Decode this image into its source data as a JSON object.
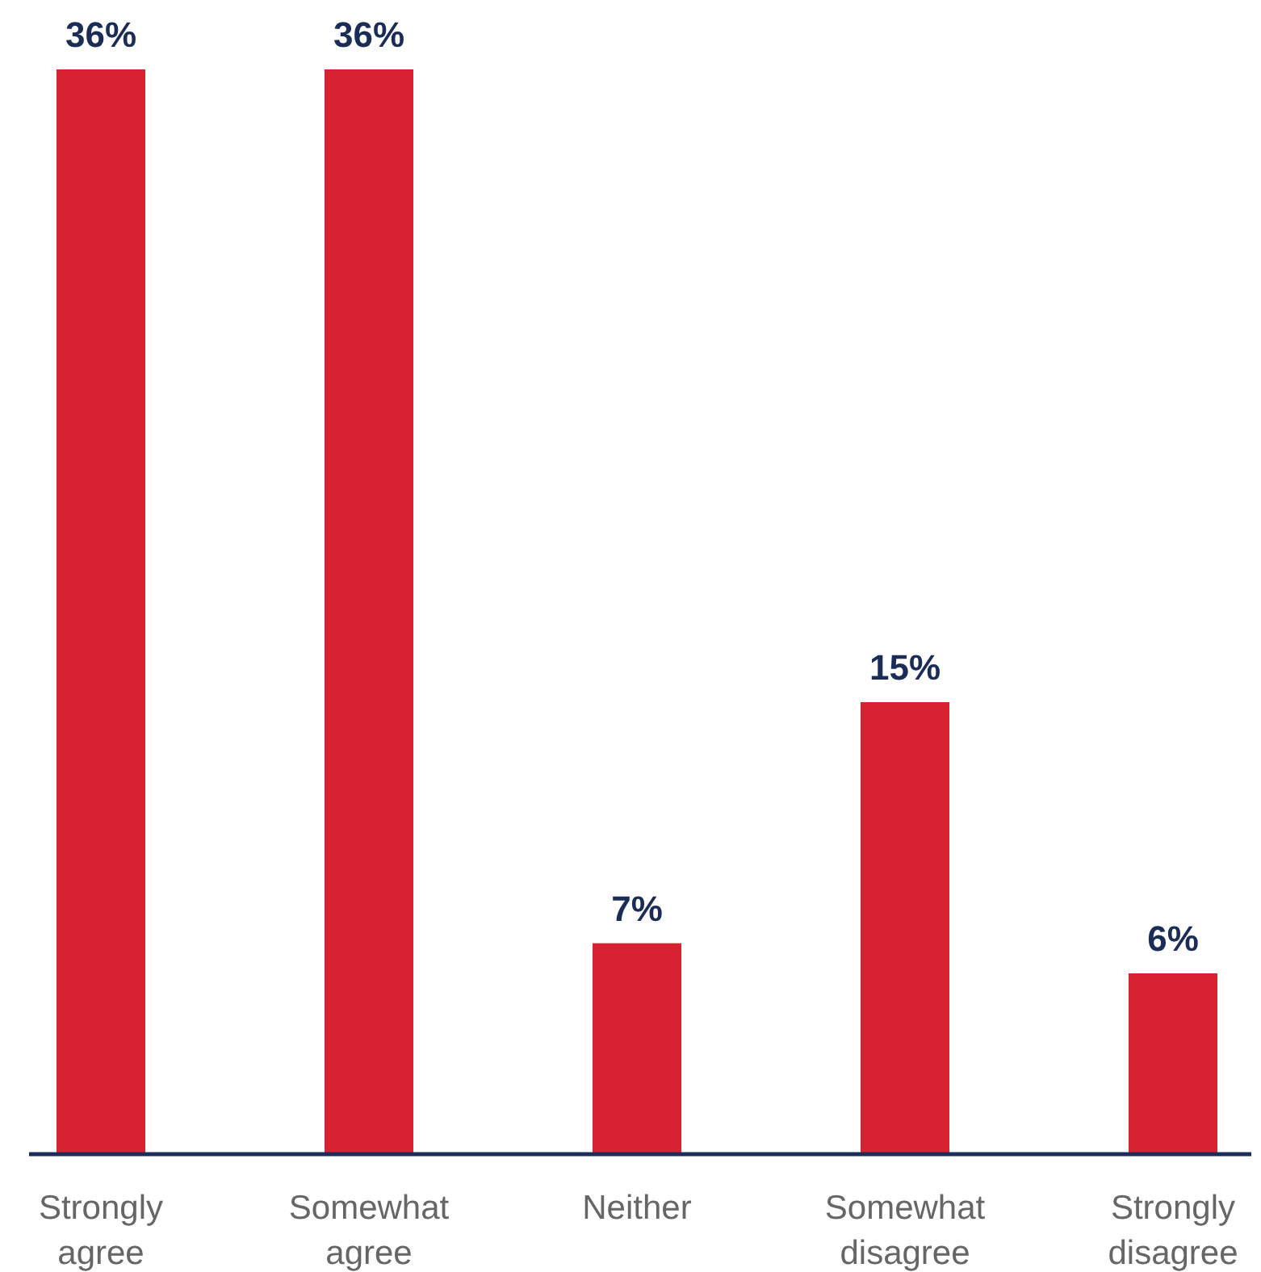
{
  "chart_data": {
    "type": "bar",
    "categories": [
      "Strongly agree",
      "Somewhat agree",
      "Neither",
      "Somewhat disagree",
      "Strongly disagree"
    ],
    "values": [
      36,
      36,
      7,
      15,
      6
    ],
    "color": "#d92231",
    "value_labels": [
      "36%",
      "36%",
      "7%",
      "15%",
      "6%"
    ]
  }
}
